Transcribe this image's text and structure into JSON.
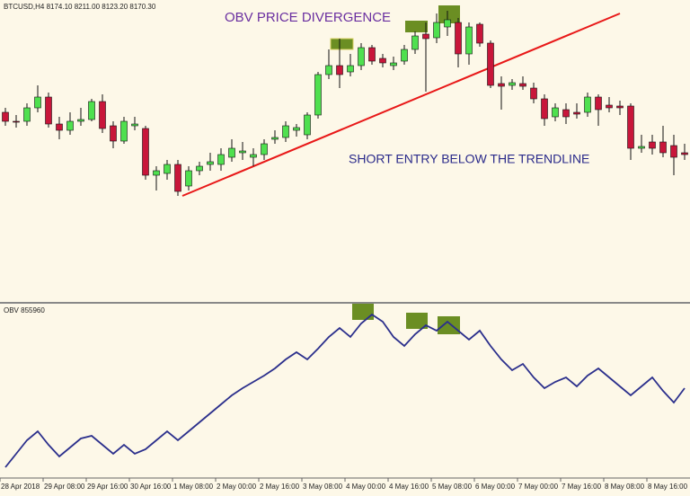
{
  "chart_data": [
    {
      "type": "candlestick",
      "title": "BTCUSD,H4 8174.10 8211.00 8123.20 8170.30",
      "annotations": [
        "OBV PRICE DIVERGENCE",
        "SHORT ENTRY BELOW THE TRENDLINE"
      ],
      "up_color": "#4fe04f",
      "down_color": "#c8163a",
      "ylim": [
        7325,
        9000
      ],
      "open": [
        8375,
        8325,
        8325,
        8400,
        8460,
        8310,
        8275,
        8325,
        8335,
        8435,
        8300,
        8215,
        8300,
        8285,
        8025,
        8035,
        8085,
        7965,
        8050,
        8085,
        8085,
        8125,
        8150,
        8125,
        8140,
        8225,
        8235,
        8275,
        8250,
        8360,
        8585,
        8635,
        8600,
        8635,
        8735,
        8675,
        8635,
        8660,
        8725,
        8810,
        8790,
        8850,
        8875,
        8700,
        8865,
        8760,
        8535,
        8525,
        8535,
        8510,
        8450,
        8350,
        8390,
        8375,
        8375,
        8460,
        8415,
        8410,
        8410,
        8175,
        8210,
        8210,
        8190,
        8150
      ],
      "high": [
        8400,
        8360,
        8425,
        8525,
        8485,
        8350,
        8375,
        8400,
        8450,
        8475,
        8325,
        8350,
        8350,
        8300,
        8075,
        8110,
        8110,
        8075,
        8100,
        8150,
        8175,
        8225,
        8210,
        8175,
        8225,
        8275,
        8325,
        8310,
        8375,
        8600,
        8725,
        8785,
        8700,
        8760,
        8750,
        8700,
        8685,
        8750,
        8825,
        8875,
        8925,
        8940,
        8900,
        8875,
        8875,
        8775,
        8575,
        8560,
        8575,
        8540,
        8475,
        8425,
        8425,
        8425,
        8485,
        8475,
        8460,
        8440,
        8425,
        8250,
        8250,
        8300,
        8250,
        8200
      ],
      "low": [
        8300,
        8290,
        8300,
        8375,
        8290,
        8225,
        8250,
        8300,
        8325,
        8260,
        8175,
        8200,
        8275,
        8000,
        7940,
        8000,
        7910,
        7940,
        8025,
        8050,
        8050,
        8100,
        8110,
        8075,
        8110,
        8200,
        8210,
        8240,
        8225,
        8340,
        8560,
        8510,
        8575,
        8610,
        8640,
        8625,
        8610,
        8640,
        8700,
        8490,
        8760,
        8800,
        8625,
        8640,
        8740,
        8510,
        8390,
        8500,
        8500,
        8425,
        8300,
        8325,
        8310,
        8340,
        8350,
        8300,
        8375,
        8360,
        8110,
        8150,
        8140,
        8125,
        8025,
        8110
      ],
      "close": [
        8325,
        8320,
        8400,
        8460,
        8310,
        8275,
        8325,
        8335,
        8435,
        8285,
        8215,
        8325,
        8310,
        8025,
        8050,
        8085,
        7935,
        8050,
        8075,
        8100,
        8140,
        8175,
        8160,
        8140,
        8200,
        8235,
        8300,
        8290,
        8360,
        8585,
        8635,
        8585,
        8635,
        8735,
        8660,
        8650,
        8650,
        8725,
        8800,
        8785,
        8875,
        8890,
        8700,
        8850,
        8760,
        8525,
        8520,
        8540,
        8520,
        8450,
        8340,
        8400,
        8350,
        8365,
        8460,
        8390,
        8400,
        8400,
        8175,
        8185,
        8175,
        8150,
        8125,
        8140
      ]
    },
    {
      "type": "line",
      "title": "OBV 855960",
      "color": "#2b2f8c",
      "ylim": [
        0,
        190
      ],
      "values": [
        10,
        25,
        40,
        50,
        35,
        22,
        32,
        42,
        45,
        35,
        25,
        35,
        25,
        30,
        40,
        50,
        40,
        50,
        60,
        70,
        80,
        90,
        98,
        105,
        112,
        120,
        130,
        138,
        130,
        142,
        155,
        165,
        155,
        170,
        180,
        172,
        155,
        145,
        158,
        168,
        162,
        172,
        162,
        152,
        162,
        145,
        130,
        118,
        125,
        110,
        98,
        105,
        110,
        100,
        112,
        120,
        110,
        100,
        90,
        100,
        110,
        95,
        82,
        98
      ],
      "categories": [
        "28 Apr 2018",
        null,
        null,
        null,
        "29 Apr 08:00",
        null,
        null,
        null,
        "29 Apr 16:00",
        null,
        null,
        null,
        "30 Apr 16:00",
        null,
        null,
        null,
        "1 May 08:00",
        null,
        null,
        null,
        "2 May 00:00",
        null,
        null,
        null,
        "2 May 16:00",
        null,
        null,
        null,
        "3 May 08:00",
        null,
        null,
        null,
        "4 May 00:00",
        null,
        null,
        null,
        "4 May 16:00",
        null,
        null,
        null,
        "5 May 08:00",
        null,
        null,
        null,
        "6 May 00:00",
        null,
        null,
        null,
        "7 May 00:00",
        null,
        null,
        null,
        "7 May 16:00",
        null,
        null,
        null,
        "8 May 08:00",
        null,
        null,
        null,
        "8 May 16:00",
        null,
        null,
        null
      ]
    }
  ]
}
